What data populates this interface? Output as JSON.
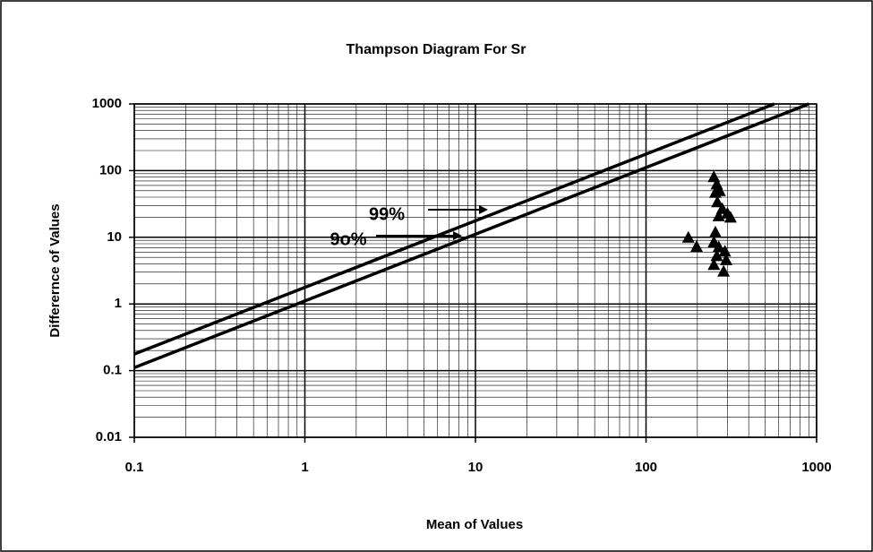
{
  "chart_data": {
    "type": "scatter",
    "title": "Thampson Diagram For Sr",
    "x_label": "Mean of Values",
    "y_label": "Differernce of Values",
    "log_x": true,
    "log_y": true,
    "grid": true,
    "xlim": [
      0.1,
      1000
    ],
    "ylim": [
      0.01,
      1000
    ],
    "xticks": [
      0.1,
      1,
      10,
      100,
      1000
    ],
    "yticks": [
      0.01,
      0.1,
      1,
      10,
      100,
      1000
    ],
    "color": "#000000",
    "points": {
      "x": [
        177,
        198,
        250,
        260,
        255,
        270,
        262,
        280,
        267,
        300,
        313,
        255,
        250,
        267,
        260,
        290,
        250,
        295,
        285
      ],
      "values": [
        10,
        7.3,
        81,
        63,
        47,
        50,
        34,
        27,
        21,
        23,
        20,
        12,
        8.5,
        7.2,
        5.3,
        6.2,
        3.9,
        4.6,
        3.1
      ]
    },
    "lines": [
      {
        "x": [
          0.1,
          565
        ],
        "values": [
          0.177,
          1000
        ]
      },
      {
        "x": [
          0.1,
          900
        ],
        "values": [
          0.111,
          1000
        ]
      }
    ],
    "annotations": [
      "99%",
      "9o%"
    ]
  }
}
